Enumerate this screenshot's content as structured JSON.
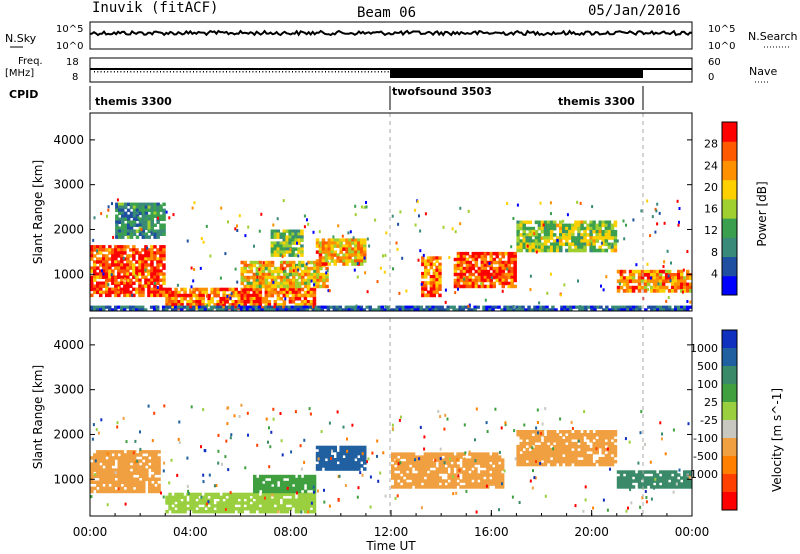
{
  "header": {
    "station": "Inuvik (fitACF)",
    "beam": "Beam 06",
    "date": "05/Jan/2016"
  },
  "noise_panel": {
    "left_label": "N.Sky",
    "right_label": "N.Search",
    "left_ticks": [
      "10^5",
      "10^0"
    ],
    "right_ticks": [
      "10^5",
      "10^0"
    ]
  },
  "freq_panel": {
    "left_label": "Freq.",
    "left_unit": "[MHz]",
    "left_ticks": [
      "18",
      "8"
    ],
    "right_label": "Nave",
    "right_ticks": [
      "60",
      "0"
    ]
  },
  "cpid_panel": {
    "label": "CPID",
    "segments": [
      {
        "name": "themis 3300",
        "start_hour": 0
      },
      {
        "name": "twofsound 3503",
        "start_hour": 12
      },
      {
        "name": "themis 3300",
        "start_hour": 22
      }
    ]
  },
  "colors": {
    "power_scale": [
      "#0000ff",
      "#1f4fa0",
      "#3a8a7a",
      "#3aa050",
      "#a0d030",
      "#ffd000",
      "#ff9000",
      "#ff5a00",
      "#ff0000"
    ],
    "velocity_scale": [
      "#1030c0",
      "#2060a0",
      "#3a8a6a",
      "#40a040",
      "#9ad040",
      "#c8c8c0",
      "#f0a040",
      "#ff8000",
      "#ff4000",
      "#ff0000"
    ]
  },
  "chart_data": [
    {
      "type": "heatmap",
      "title": "Power",
      "ylabel": "Slant Range [km]",
      "xlabel": "",
      "ylim": [
        180,
        4600
      ],
      "xlim": [
        0,
        24
      ],
      "yticks": [
        1000,
        2000,
        3000,
        4000
      ],
      "colorbar": {
        "label": "Power [dB]",
        "ticks": [
          4,
          8,
          12,
          16,
          20,
          24,
          28
        ]
      },
      "blocks": [
        {
          "t0": 0.0,
          "t1": 3.0,
          "r0": 500,
          "r1": 1650,
          "value": 28
        },
        {
          "t0": 3.0,
          "t1": 9.0,
          "r0": 220,
          "r1": 700,
          "value": 26
        },
        {
          "t0": 6.0,
          "t1": 9.5,
          "r0": 700,
          "r1": 1300,
          "value": 20
        },
        {
          "t0": 1.0,
          "t1": 3.0,
          "r0": 1800,
          "r1": 2600,
          "value": 10
        },
        {
          "t0": 7.2,
          "t1": 8.5,
          "r0": 1400,
          "r1": 2000,
          "value": 14
        },
        {
          "t0": 9.0,
          "t1": 11.0,
          "r0": 1200,
          "r1": 1800,
          "value": 22
        },
        {
          "t0": 13.2,
          "t1": 14.0,
          "r0": 500,
          "r1": 1400,
          "value": 26
        },
        {
          "t0": 14.5,
          "t1": 17.0,
          "r0": 700,
          "r1": 1500,
          "value": 28
        },
        {
          "t0": 17.0,
          "t1": 21.0,
          "r0": 1500,
          "r1": 2200,
          "value": 16
        },
        {
          "t0": 21.0,
          "t1": 24.0,
          "r0": 600,
          "r1": 1100,
          "value": 24
        },
        {
          "t0": 0.0,
          "t1": 24.0,
          "r0": 180,
          "r1": 300,
          "value": 6
        }
      ]
    },
    {
      "type": "heatmap",
      "title": "Velocity",
      "ylabel": "Slant Range [km]",
      "xlabel": "Time UT",
      "ylim": [
        180,
        4600
      ],
      "xlim": [
        0,
        24
      ],
      "yticks": [
        1000,
        2000,
        3000,
        4000
      ],
      "xticks": [
        "00:00",
        "04:00",
        "08:00",
        "12:00",
        "16:00",
        "20:00",
        "00:00"
      ],
      "colorbar": {
        "label": "Velocity [m s^-1]",
        "ticks": [
          1000,
          500,
          100,
          25,
          -25,
          -100,
          -500,
          -1000
        ]
      },
      "blocks": [
        {
          "t0": 0.0,
          "t1": 2.8,
          "r0": 700,
          "r1": 1650,
          "value": -150
        },
        {
          "t0": 3.0,
          "t1": 9.0,
          "r0": 250,
          "r1": 700,
          "value": 0
        },
        {
          "t0": 6.5,
          "t1": 9.0,
          "r0": 700,
          "r1": 1100,
          "value": 60
        },
        {
          "t0": 9.0,
          "t1": 11.0,
          "r0": 1200,
          "r1": 1750,
          "value": 700
        },
        {
          "t0": 12.0,
          "t1": 16.5,
          "r0": 800,
          "r1": 1600,
          "value": -400
        },
        {
          "t0": 17.0,
          "t1": 21.0,
          "r0": 1300,
          "r1": 2100,
          "value": -300
        },
        {
          "t0": 21.0,
          "t1": 24.0,
          "r0": 800,
          "r1": 1200,
          "value": 150
        }
      ]
    }
  ]
}
